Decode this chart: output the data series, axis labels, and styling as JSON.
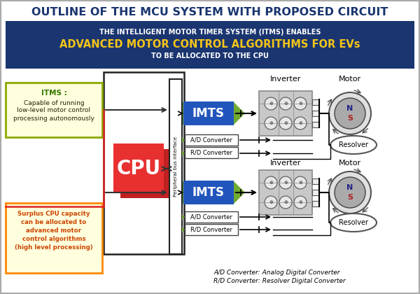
{
  "title": "OUTLINE OF THE MCU SYSTEM WITH PROPOSED CIRCUIT",
  "subtitle_line1": "THE INTELLIGENT MOTOR TIMER SYSTEM (ITMS) ENABLES",
  "subtitle_line2": "ADVANCED MOTOR CONTROL ALGORITHMS FOR EVs",
  "subtitle_line3": "TO BE ALLOCATED TO THE CPU",
  "bg_color": "#ffffff",
  "header_bg": "#1a3570",
  "header_text_color": "#ffffff",
  "header_highlight_color": "#f5c518",
  "itms_box_color": "#fffff0",
  "itms_border_color": "#8aaa00",
  "surplus_box_color": "#fffff0",
  "surplus_border_color": "#ff8800",
  "cpu_color": "#e83030",
  "cpu_shadow_color": "#c02020",
  "imts_color": "#2255bb",
  "imts_arrow_color": "#70aa30",
  "converter_bg": "#ffffff",
  "inverter_bg": "#cccccc",
  "footnote_line1": "A/D Converter: Analog Digital Converter",
  "footnote_line2": "R/D Converter: Resolver Digital Converter"
}
